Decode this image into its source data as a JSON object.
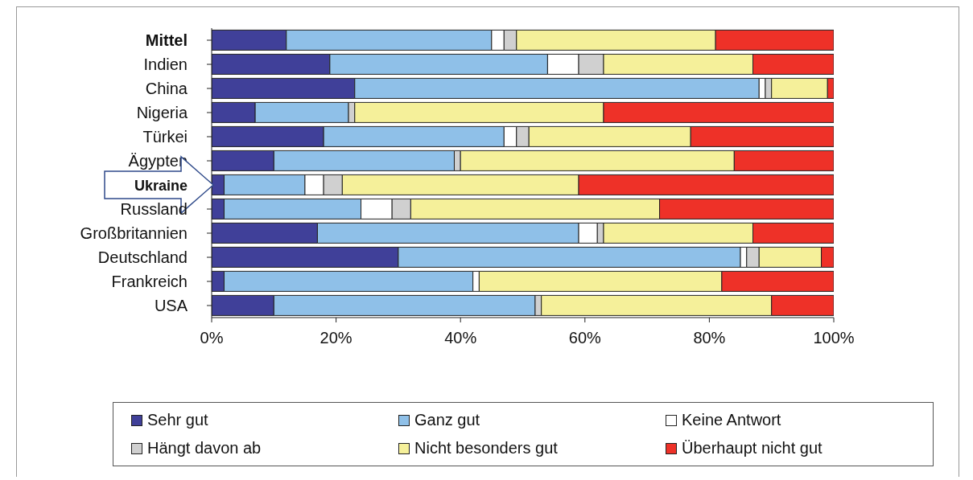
{
  "chart_data": {
    "type": "bar",
    "orientation": "horizontal",
    "stacked": true,
    "categories": [
      "Mittel",
      "Indien",
      "China",
      "Nigeria",
      "Türkei",
      "Ägypten",
      "Ukraine",
      "Russland",
      "Großbritannien",
      "Deutschland",
      "Frankreich",
      "USA"
    ],
    "series": [
      {
        "name": "Sehr gut",
        "color": "#404099",
        "values": [
          12,
          19,
          23,
          7,
          18,
          10,
          2,
          2,
          17,
          30,
          2,
          10
        ]
      },
      {
        "name": "Ganz gut",
        "color": "#8fc0e8",
        "values": [
          33,
          35,
          65,
          15,
          29,
          29,
          13,
          22,
          42,
          55,
          40,
          42
        ]
      },
      {
        "name": "Keine Antwort",
        "color": "#ffffff",
        "values": [
          2,
          5,
          1,
          0,
          2,
          0,
          3,
          5,
          3,
          1,
          1,
          0
        ]
      },
      {
        "name": "Hängt davon ab",
        "color": "#d0d0d0",
        "values": [
          2,
          4,
          1,
          1,
          2,
          1,
          3,
          3,
          1,
          2,
          0,
          1
        ]
      },
      {
        "name": "Nicht besonders gut",
        "color": "#f5f09a",
        "values": [
          32,
          24,
          9,
          40,
          26,
          44,
          38,
          40,
          24,
          10,
          39,
          37
        ]
      },
      {
        "name": "Überhaupt nicht gut",
        "color": "#ee3128",
        "values": [
          19,
          13,
          1,
          37,
          23,
          16,
          41,
          28,
          13,
          2,
          18,
          10
        ]
      }
    ],
    "xlim": [
      0,
      100
    ],
    "xticks": [
      {
        "value": 0,
        "label": "0%"
      },
      {
        "value": 20,
        "label": "20%"
      },
      {
        "value": 40,
        "label": "40%"
      },
      {
        "value": 60,
        "label": "60%"
      },
      {
        "value": 80,
        "label": "80%"
      },
      {
        "value": 100,
        "label": "100%"
      }
    ],
    "legend": "bottom"
  }
}
